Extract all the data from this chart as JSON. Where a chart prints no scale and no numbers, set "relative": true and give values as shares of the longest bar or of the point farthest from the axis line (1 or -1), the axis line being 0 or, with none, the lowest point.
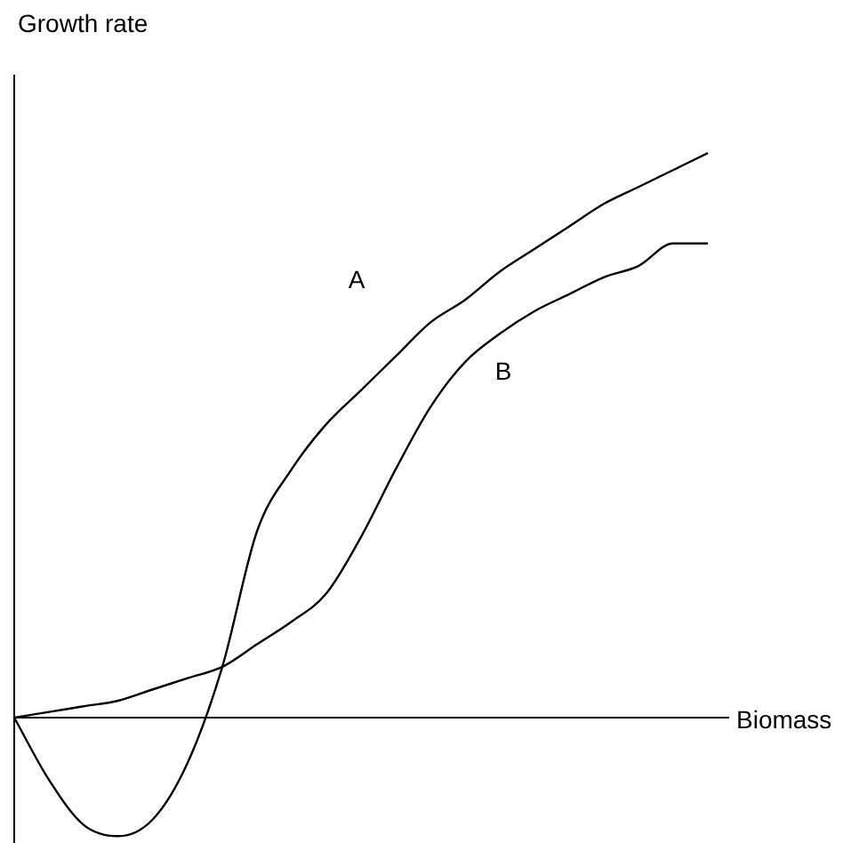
{
  "chart_data": {
    "type": "line",
    "relative": true,
    "xlabel": "Biomass",
    "ylabel": "Growth rate",
    "marker": "none",
    "line_style": "solid",
    "legend": false,
    "categories": [
      null,
      null,
      null,
      null,
      null,
      null,
      null,
      null,
      null,
      null,
      null,
      null,
      null,
      null,
      null,
      null,
      null,
      null,
      null,
      null,
      null
    ],
    "series": [
      {
        "name": "A",
        "color": "#000000",
        "values": [
          0,
          -0.11,
          -0.19,
          -0.21,
          -0.18,
          -0.08,
          0.09,
          0.33,
          0.44,
          0.52,
          0.58,
          0.64,
          0.7,
          0.74,
          0.79,
          0.83,
          0.87,
          0.91,
          0.94,
          0.97,
          1
        ]
      },
      {
        "name": "B",
        "color": "#000000",
        "values": [
          0,
          0.01,
          0.02,
          0.03,
          0.05,
          0.07,
          0.09,
          0.13,
          0.17,
          0.22,
          0.32,
          0.44,
          0.55,
          0.63,
          0.68,
          0.72,
          0.75,
          0.78,
          0.8,
          0.84,
          0.84
        ]
      }
    ]
  }
}
